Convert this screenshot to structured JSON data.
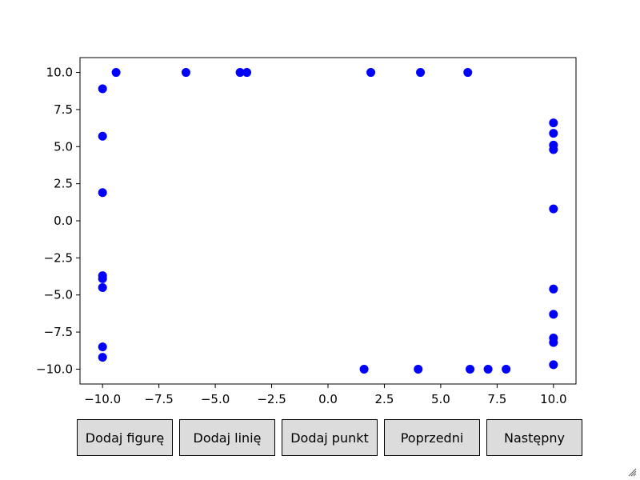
{
  "buttons": [
    {
      "label": "Dodaj figurę"
    },
    {
      "label": "Dodaj linię"
    },
    {
      "label": "Dodaj punkt"
    },
    {
      "label": "Poprzedni"
    },
    {
      "label": "Następny"
    }
  ],
  "colors": {
    "points": "#0000ff",
    "axes": "#000000",
    "button_bg": "#dcdcdc"
  },
  "icons": {
    "resize": "resize-grip-icon"
  },
  "chart_data": {
    "type": "scatter",
    "title": "",
    "xlabel": "",
    "ylabel": "",
    "xlim": [
      -11,
      11
    ],
    "ylim": [
      -11,
      11
    ],
    "grid": false,
    "xticks": [
      -10.0,
      -7.5,
      -5.0,
      -2.5,
      0.0,
      2.5,
      5.0,
      7.5,
      10.0
    ],
    "yticks": [
      -10.0,
      -7.5,
      -5.0,
      -2.5,
      0.0,
      2.5,
      5.0,
      7.5,
      10.0
    ],
    "xtick_labels": [
      "−10.0",
      "−7.5",
      "−5.0",
      "−2.5",
      "0.0",
      "2.5",
      "5.0",
      "7.5",
      "10.0"
    ],
    "ytick_labels": [
      "−10.0",
      "−7.5",
      "−5.0",
      "−2.5",
      "0.0",
      "2.5",
      "5.0",
      "7.5",
      "10.0"
    ],
    "series": [
      {
        "color": "#0000ff",
        "points": [
          [
            -9.4,
            10
          ],
          [
            -6.3,
            10
          ],
          [
            -3.9,
            10
          ],
          [
            -3.6,
            10
          ],
          [
            1.9,
            10
          ],
          [
            4.1,
            10
          ],
          [
            6.2,
            10
          ],
          [
            -10,
            8.9
          ],
          [
            -10,
            5.7
          ],
          [
            -10,
            1.9
          ],
          [
            -10,
            -3.7
          ],
          [
            -10,
            -3.9
          ],
          [
            -10,
            -4.5
          ],
          [
            -10,
            -8.5
          ],
          [
            -10,
            -9.2
          ],
          [
            10,
            6.6
          ],
          [
            10,
            5.9
          ],
          [
            10,
            5.1
          ],
          [
            10,
            4.8
          ],
          [
            10,
            0.8
          ],
          [
            10,
            -4.6
          ],
          [
            10,
            -6.3
          ],
          [
            10,
            -7.9
          ],
          [
            10,
            -8.2
          ],
          [
            10,
            -9.7
          ],
          [
            1.6,
            -10
          ],
          [
            4.0,
            -10
          ],
          [
            6.3,
            -10
          ],
          [
            7.1,
            -10
          ],
          [
            7.9,
            -10
          ]
        ]
      }
    ]
  }
}
